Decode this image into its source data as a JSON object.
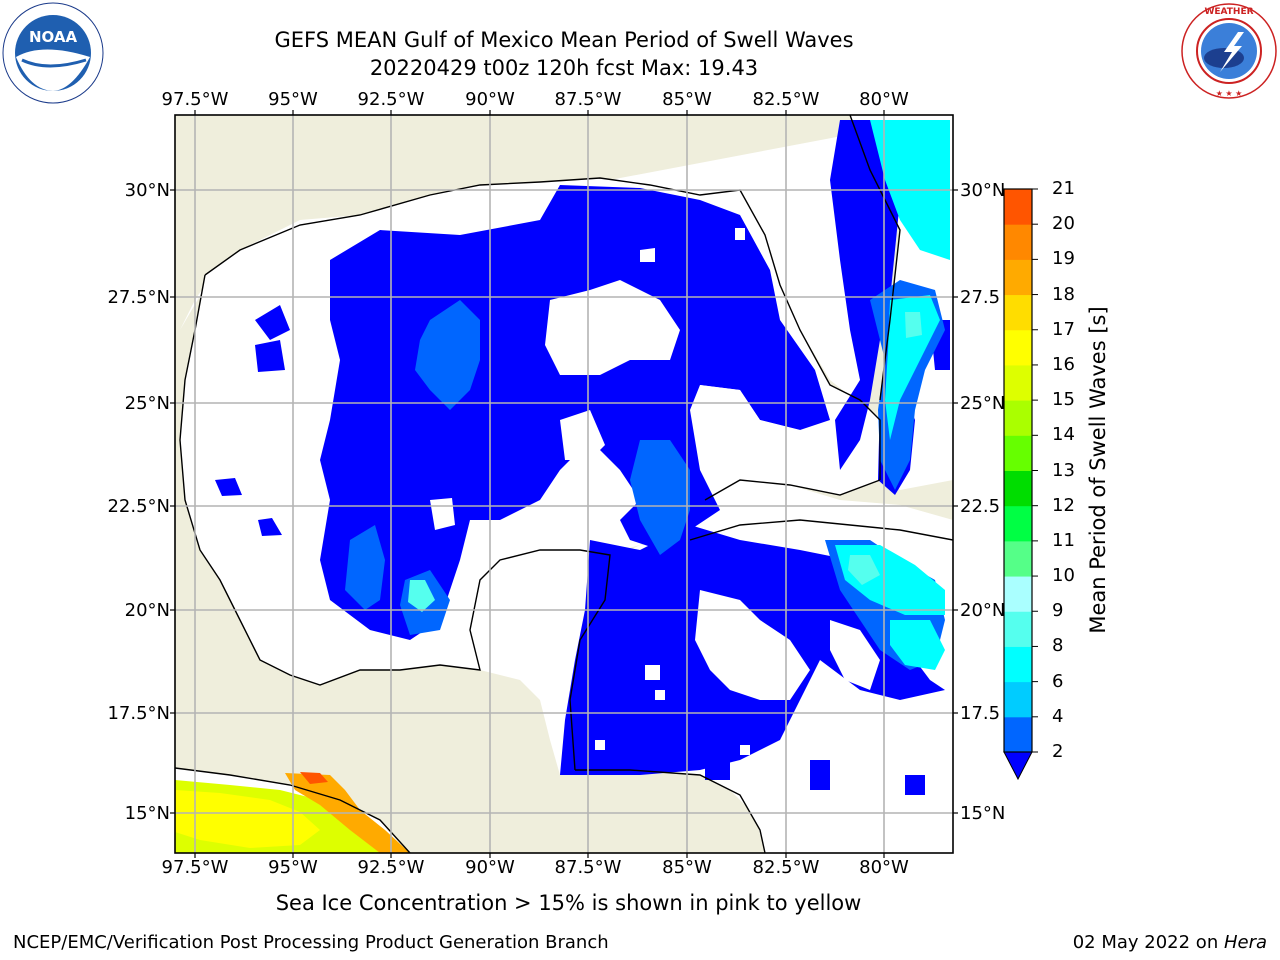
{
  "header": {
    "title_line1": "GEFS MEAN Gulf of Mexico Mean Period of Swell Waves",
    "title_line2": "20220429 t00z 120h fcst   Max: 19.43"
  },
  "logos": {
    "left": "NOAA",
    "left_ring": "NATIONAL OCEANIC AND ATMOSPHERIC ADMINISTRATION · U.S. DEPARTMENT OF COMMERCE",
    "right_ring": "NATIONAL WEATHER SERVICE"
  },
  "map": {
    "lon_labels": [
      "97.5°W",
      "95°W",
      "92.5°W",
      "90°W",
      "87.5°W",
      "85°W",
      "82.5°W",
      "80°W"
    ],
    "lat_labels_left": [
      "30°N",
      "27.5°N",
      "25°N",
      "22.5°N",
      "20°N",
      "17.5°N",
      "15°N"
    ],
    "lat_labels_right": [
      "30°N",
      "27.5",
      "25°N",
      "22.5",
      "20°N",
      "17.5",
      "15°N"
    ],
    "colors": {
      "land": "#efeedc",
      "water": "#ffffff",
      "grid": "#b4b4b4"
    }
  },
  "colorbar": {
    "label": "Mean Period of Swell Waves [s]",
    "ticks": [
      "2",
      "4",
      "6",
      "8",
      "9",
      "10",
      "11",
      "12",
      "13",
      "14",
      "15",
      "16",
      "17",
      "18",
      "19",
      "20",
      "21"
    ],
    "colors": [
      "#0066ff",
      "#00ccff",
      "#00ffff",
      "#55ffee",
      "#aaffff",
      "#55ff88",
      "#00ff44",
      "#00dd00",
      "#66ff00",
      "#aaff00",
      "#ddff00",
      "#ffff00",
      "#ffdd00",
      "#ffaa00",
      "#ff8800",
      "#ff5500",
      "#ff2200",
      "#ff0000"
    ],
    "extend_color": "#0000ff"
  },
  "footer": {
    "caption": "Sea Ice Concentration > 15% is shown in pink to yellow",
    "left": "NCEP/EMC/Verification Post Processing Product Generation Branch",
    "right_date": "02 May 2022 on ",
    "right_host": "Hera"
  }
}
